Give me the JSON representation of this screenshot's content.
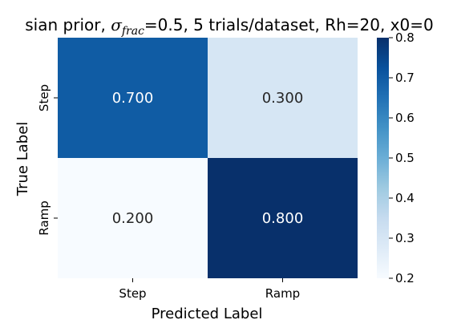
{
  "chart_data": {
    "type": "heatmap",
    "title": {
      "before": "sian prior, ",
      "symbol": "σ",
      "subscript": "frac",
      "after": "=0.5, 5 trials/dataset, Rh=20, x0=0"
    },
    "xlabel": "Predicted Label",
    "ylabel": "True Label",
    "x_categories": [
      "Step",
      "Ramp"
    ],
    "y_categories": [
      "Step",
      "Ramp"
    ],
    "values": [
      [
        0.7,
        0.3
      ],
      [
        0.2,
        0.8
      ]
    ],
    "cell_labels": [
      [
        "0.700",
        "0.300"
      ],
      [
        "0.200",
        "0.800"
      ]
    ],
    "colorbar": {
      "range": [
        0.2,
        0.8
      ],
      "ticks": [
        0.2,
        0.3,
        0.4,
        0.5,
        0.6,
        0.7,
        0.8
      ],
      "tick_labels": [
        "0.2",
        "0.3",
        "0.4",
        "0.5",
        "0.6",
        "0.7",
        "0.8"
      ],
      "colormap": "Blues",
      "colors": [
        "#f7fbff",
        "#deebf7",
        "#c6dbef",
        "#9ecae1",
        "#6baed6",
        "#4292c6",
        "#2171b5",
        "#08519c",
        "#08306b"
      ]
    }
  }
}
